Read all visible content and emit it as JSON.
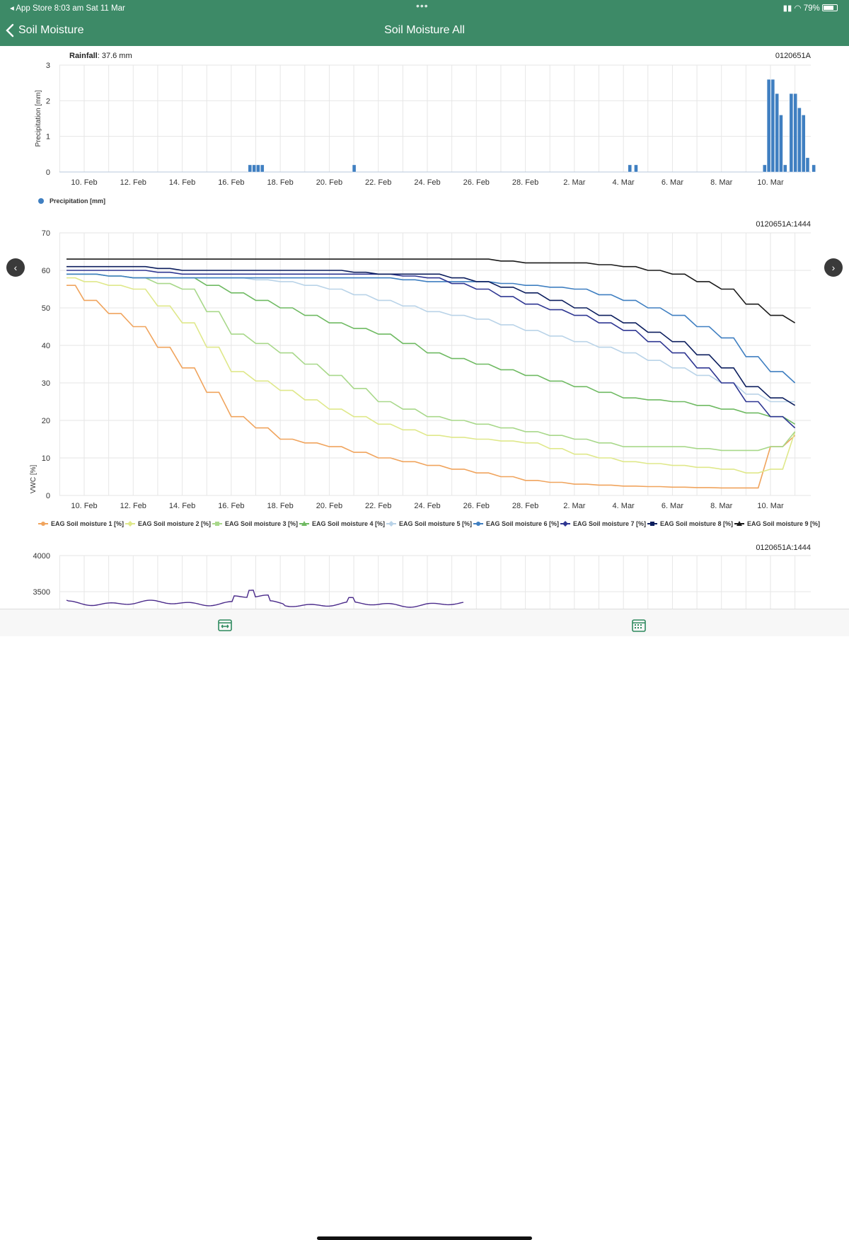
{
  "status": {
    "left": "◂ App Store   8:03 am   Sat 11 Mar",
    "dots": "•••",
    "battery": "79%"
  },
  "nav": {
    "back_label": "Soil Moisture",
    "title": "Soil Moisture All"
  },
  "rain_chart": {
    "rainfall_label": "Rainfall",
    "rainfall_value": ": 37.6 mm",
    "station": "0120651A",
    "ylabel": "Precipitation [mm]",
    "yticks": [
      "0",
      "1",
      "2",
      "3"
    ],
    "xticks": [
      "10. Feb",
      "12. Feb",
      "14. Feb",
      "16. Feb",
      "18. Feb",
      "20. Feb",
      "22. Feb",
      "24. Feb",
      "26. Feb",
      "28. Feb",
      "2. Mar",
      "4. Mar",
      "6. Mar",
      "8. Mar",
      "10. Mar"
    ],
    "legend": "Precipitation [mm]",
    "color": "#3f7fc1"
  },
  "moisture_chart": {
    "station": "0120651A:1444",
    "ylabel": "VWC [%]",
    "yticks": [
      "0",
      "10",
      "20",
      "30",
      "40",
      "50",
      "60",
      "70"
    ],
    "xticks": [
      "10. Feb",
      "12. Feb",
      "14. Feb",
      "16. Feb",
      "18. Feb",
      "20. Feb",
      "22. Feb",
      "24. Feb",
      "26. Feb",
      "28. Feb",
      "2. Mar",
      "4. Mar",
      "6. Mar",
      "8. Mar",
      "10. Mar"
    ]
  },
  "third_chart": {
    "station": "0120651A:1444",
    "yticks": [
      "3500",
      "4000"
    ]
  },
  "chart_data": [
    {
      "type": "bar",
      "title": "",
      "ylabel": "Precipitation [mm]",
      "ylim": [
        0,
        3
      ],
      "x_axis": "date",
      "series": [
        {
          "name": "Precipitation [mm]",
          "points": [
            [
              "16. Feb 18:00",
              0.2
            ],
            [
              "16. Feb 22:00",
              0.2
            ],
            [
              "17. Feb 02:00",
              0.2
            ],
            [
              "17. Feb 06:00",
              0.2
            ],
            [
              "21. Feb 00:00",
              0.2
            ],
            [
              "4. Mar 06:00",
              0.2
            ],
            [
              "4. Mar 12:00",
              0.2
            ],
            [
              "9. Mar 18:00",
              0.2
            ],
            [
              "9. Mar 22:00",
              2.6
            ],
            [
              "10. Mar 02:00",
              2.6
            ],
            [
              "10. Mar 06:00",
              2.2
            ],
            [
              "10. Mar 10:00",
              1.6
            ],
            [
              "10. Mar 14:00",
              0.2
            ],
            [
              "10. Mar 20:00",
              2.2
            ],
            [
              "11. Mar 00:00",
              2.2
            ],
            [
              "11. Mar 04:00",
              1.8
            ],
            [
              "11. Mar 08:00",
              1.6
            ],
            [
              "11. Mar 12:00",
              0.4
            ],
            [
              "11. Mar 18:00",
              0.2
            ]
          ]
        }
      ]
    },
    {
      "type": "line",
      "title": "",
      "ylabel": "VWC [%]",
      "ylim": [
        0,
        70
      ],
      "x": [
        "9. Feb",
        "10. Feb",
        "12. Feb",
        "14. Feb",
        "16. Feb",
        "18. Feb",
        "20. Feb",
        "22. Feb",
        "24. Feb",
        "26. Feb",
        "28. Feb",
        "2. Mar",
        "4. Mar",
        "6. Mar",
        "8. Mar",
        "9. Mar",
        "10. Mar",
        "11. Mar"
      ],
      "series": [
        {
          "name": "EAG Soil moisture 1 [%]",
          "color": "#f0a45d",
          "marker": "circle",
          "values": [
            56,
            52,
            45,
            34,
            21,
            15,
            13,
            10,
            8,
            6,
            4,
            3,
            2.5,
            2.2,
            2,
            2,
            13,
            16
          ]
        },
        {
          "name": "EAG Soil moisture 2 [%]",
          "color": "#dfe88a",
          "marker": "diamond",
          "values": [
            58,
            57,
            55,
            46,
            33,
            28,
            23,
            19,
            16,
            15,
            14,
            11,
            9,
            8,
            7,
            6,
            7,
            17
          ]
        },
        {
          "name": "EAG Soil moisture 3 [%]",
          "color": "#a8d88a",
          "marker": "square",
          "values": [
            59,
            59,
            58,
            55,
            43,
            38,
            32,
            25,
            21,
            19,
            17,
            15,
            13,
            13,
            12,
            12,
            13,
            17
          ]
        },
        {
          "name": "EAG Soil moisture 4 [%]",
          "color": "#6fba62",
          "marker": "triangle",
          "values": [
            59,
            59,
            58,
            58,
            54,
            50,
            46,
            43,
            38,
            35,
            32,
            29,
            26,
            25,
            23,
            22,
            21,
            19
          ]
        },
        {
          "name": "EAG Soil moisture 5 [%]",
          "color": "#b9d3e8",
          "marker": "diamond",
          "values": [
            59,
            59,
            58,
            58,
            58,
            57,
            55,
            52,
            49,
            47,
            44,
            41,
            38,
            34,
            30,
            27,
            25,
            25
          ]
        },
        {
          "name": "EAG Soil moisture 6 [%]",
          "color": "#3f7fc1",
          "marker": "circle",
          "values": [
            59,
            59,
            58,
            58,
            58,
            58,
            58,
            58,
            57,
            57,
            56,
            55,
            52,
            48,
            42,
            37,
            33,
            30
          ]
        },
        {
          "name": "EAG Soil moisture 7 [%]",
          "color": "#2e3692",
          "marker": "diamond",
          "values": [
            60,
            60,
            60,
            59,
            59,
            59,
            59,
            59,
            58,
            55,
            51,
            48,
            44,
            38,
            30,
            25,
            21,
            18
          ]
        },
        {
          "name": "EAG Soil moisture 8 [%]",
          "color": "#0c1e5e",
          "marker": "square",
          "values": [
            61,
            61,
            61,
            60,
            60,
            60,
            60,
            59,
            59,
            57,
            54,
            50,
            46,
            41,
            34,
            29,
            26,
            24
          ]
        },
        {
          "name": "EAG Soil moisture 9 [%]",
          "color": "#1a1a1a",
          "marker": "triangle",
          "values": [
            63,
            63,
            63,
            63,
            63,
            63,
            63,
            63,
            63,
            63,
            62,
            62,
            61,
            59,
            55,
            51,
            48,
            46
          ]
        }
      ]
    }
  ]
}
